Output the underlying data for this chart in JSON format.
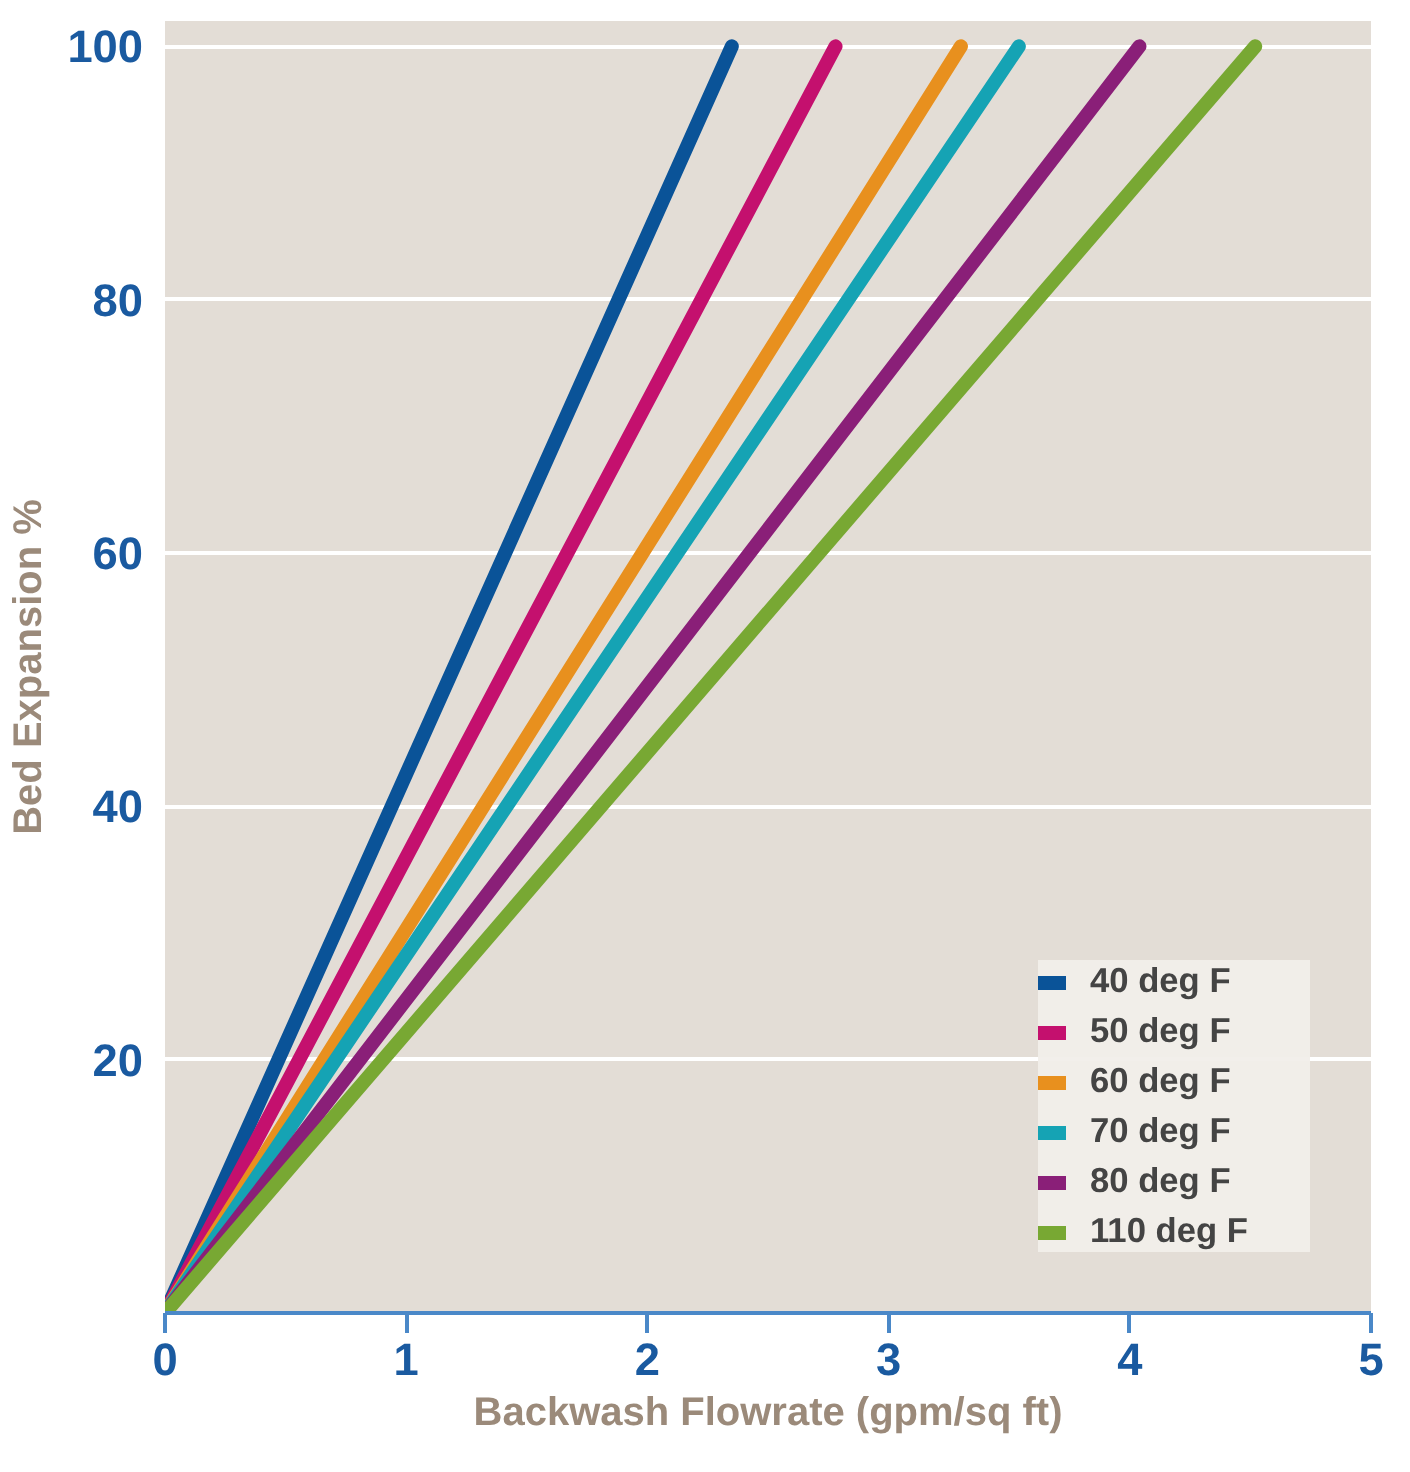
{
  "chart_data": {
    "type": "line",
    "xlabel": "Backwash Flowrate (gpm/sq ft)",
    "ylabel": "Bed Expansion %",
    "xlim": [
      0,
      5
    ],
    "ylim": [
      0,
      102
    ],
    "xticks": [
      0,
      1,
      2,
      3,
      4,
      5
    ],
    "yticks": [
      {
        "value": 0,
        "label": null
      },
      20,
      40,
      60,
      80,
      100
    ],
    "grid": "y",
    "legend": "bottom right",
    "line_style": "solid",
    "marker": "none",
    "series": [
      {
        "name": "40 deg F",
        "color": "#0a5398",
        "x": [
          0,
          2.35
        ],
        "values": [
          0,
          100
        ]
      },
      {
        "name": "50 deg F",
        "color": "#c4106e",
        "x": [
          0,
          2.78
        ],
        "values": [
          0,
          100
        ]
      },
      {
        "name": "60 deg F",
        "color": "#e8901e",
        "x": [
          0,
          3.3
        ],
        "values": [
          0,
          100
        ]
      },
      {
        "name": "70 deg F",
        "color": "#15a3b4",
        "x": [
          0,
          3.54
        ],
        "values": [
          0,
          100
        ]
      },
      {
        "name": "80 deg F",
        "color": "#8a1f78",
        "x": [
          0,
          4.04
        ],
        "values": [
          0,
          100
        ]
      },
      {
        "name": "110 deg F",
        "color": "#78a833",
        "x": [
          0,
          4.52
        ],
        "values": [
          0,
          100
        ]
      }
    ]
  }
}
